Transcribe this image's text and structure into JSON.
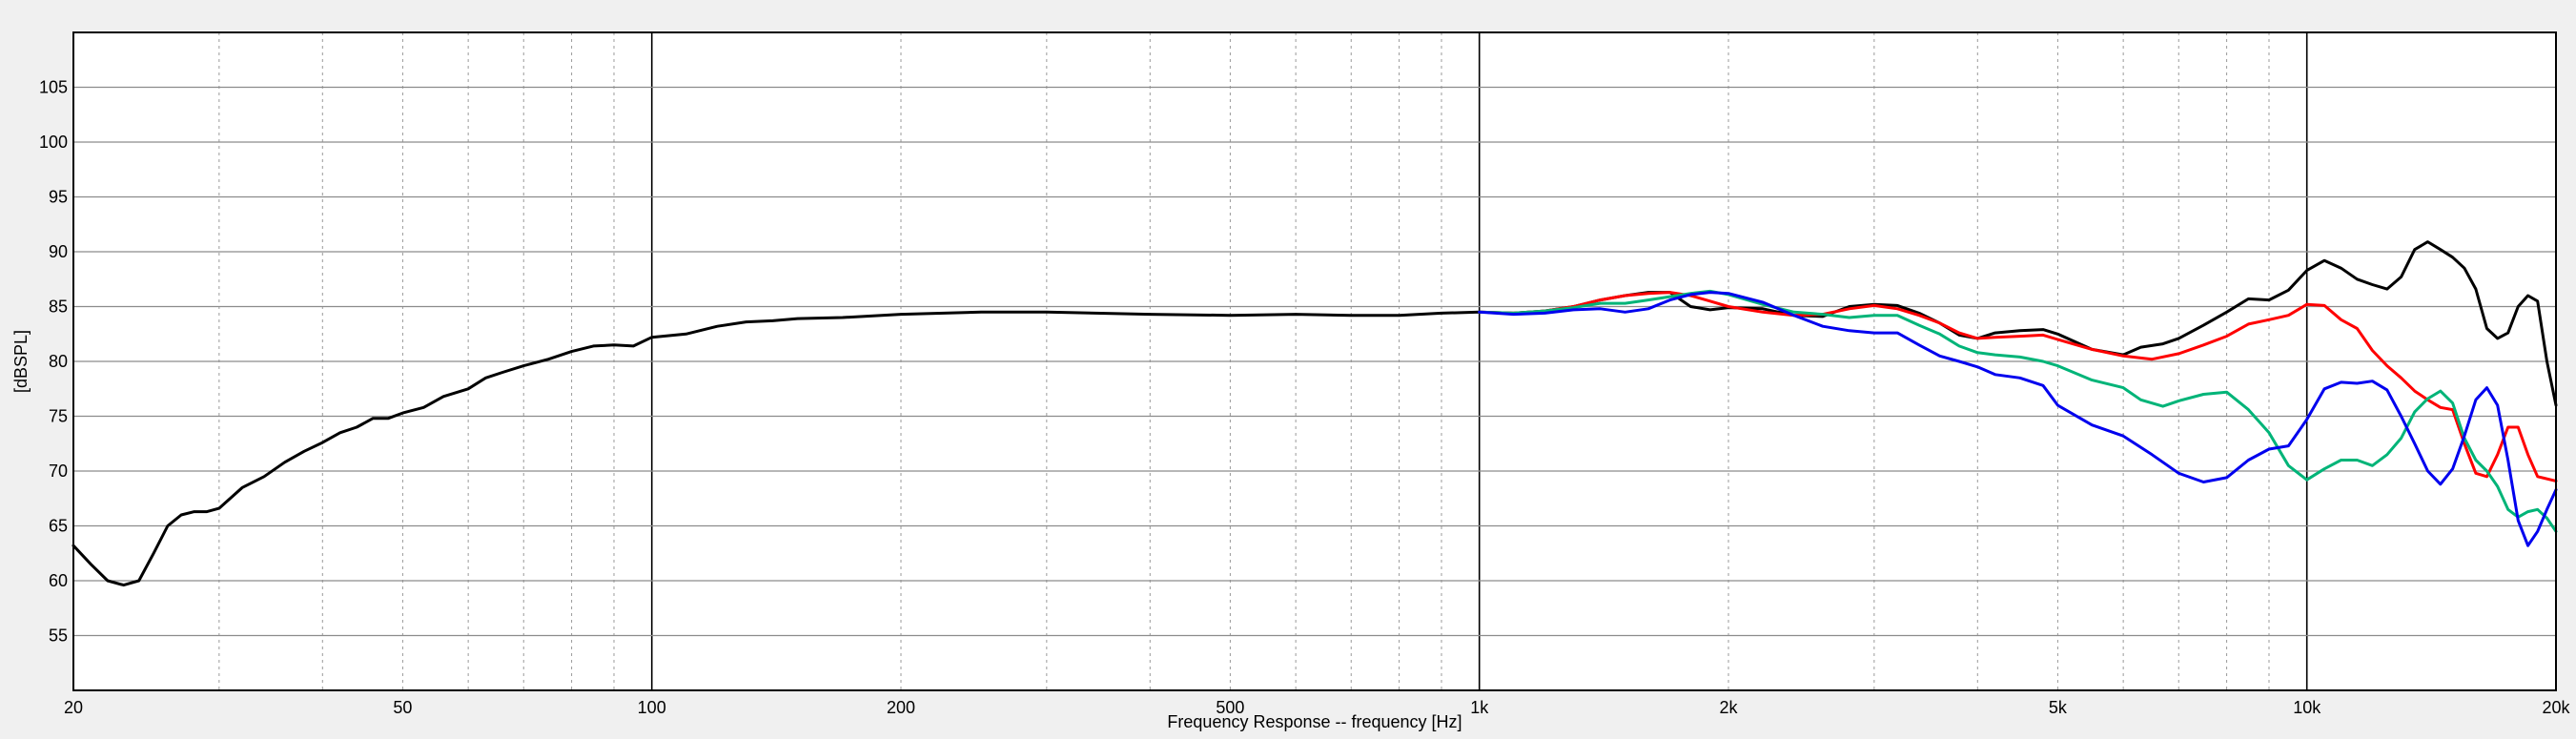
{
  "chart_data": {
    "type": "line",
    "xscale": "log",
    "xlabel": "Frequency Response -- frequency [Hz]",
    "ylabel": "[dBSPL]",
    "xlim": [
      20,
      20000
    ],
    "ylim": [
      50,
      110
    ],
    "grid": true,
    "x_ticks": [
      {
        "value": 20,
        "label": "20"
      },
      {
        "value": 50,
        "label": "50"
      },
      {
        "value": 100,
        "label": "100"
      },
      {
        "value": 200,
        "label": "200"
      },
      {
        "value": 500,
        "label": "500"
      },
      {
        "value": 1000,
        "label": "1k"
      },
      {
        "value": 2000,
        "label": "2k"
      },
      {
        "value": 5000,
        "label": "5k"
      },
      {
        "value": 10000,
        "label": "10k"
      },
      {
        "value": 20000,
        "label": "20k"
      }
    ],
    "y_ticks": [
      {
        "value": 55,
        "label": "55"
      },
      {
        "value": 60,
        "label": "60"
      },
      {
        "value": 65,
        "label": "65"
      },
      {
        "value": 70,
        "label": "70"
      },
      {
        "value": 75,
        "label": "75"
      },
      {
        "value": 80,
        "label": "80"
      },
      {
        "value": 85,
        "label": "85"
      },
      {
        "value": 90,
        "label": "90"
      },
      {
        "value": 95,
        "label": "95"
      },
      {
        "value": 100,
        "label": "100"
      },
      {
        "value": 105,
        "label": "105"
      }
    ],
    "series": [
      {
        "color": "#000000",
        "points": [
          [
            20,
            63.2
          ],
          [
            21,
            61.5
          ],
          [
            22,
            60
          ],
          [
            23,
            59.6
          ],
          [
            24,
            60
          ],
          [
            25,
            62.5
          ],
          [
            26,
            65
          ],
          [
            27,
            66
          ],
          [
            28,
            66.3
          ],
          [
            29,
            66.3
          ],
          [
            30,
            66.6
          ],
          [
            32,
            68.5
          ],
          [
            34,
            69.5
          ],
          [
            36,
            70.8
          ],
          [
            38,
            71.8
          ],
          [
            40,
            72.6
          ],
          [
            42,
            73.5
          ],
          [
            44,
            74
          ],
          [
            46,
            74.8
          ],
          [
            48,
            74.8
          ],
          [
            50,
            75.3
          ],
          [
            53,
            75.8
          ],
          [
            56,
            76.8
          ],
          [
            60,
            77.5
          ],
          [
            63,
            78.5
          ],
          [
            66,
            79
          ],
          [
            70,
            79.6
          ],
          [
            75,
            80.2
          ],
          [
            80,
            80.9
          ],
          [
            85,
            81.4
          ],
          [
            90,
            81.5
          ],
          [
            95,
            81.4
          ],
          [
            100,
            82.2
          ],
          [
            110,
            82.5
          ],
          [
            120,
            83.2
          ],
          [
            130,
            83.6
          ],
          [
            140,
            83.7
          ],
          [
            150,
            83.9
          ],
          [
            170,
            84
          ],
          [
            200,
            84.3
          ],
          [
            250,
            84.5
          ],
          [
            300,
            84.5
          ],
          [
            400,
            84.3
          ],
          [
            500,
            84.2
          ],
          [
            600,
            84.3
          ],
          [
            700,
            84.2
          ],
          [
            800,
            84.2
          ],
          [
            900,
            84.4
          ],
          [
            1000,
            84.5
          ],
          [
            1100,
            84.4
          ],
          [
            1200,
            84.6
          ],
          [
            1300,
            85
          ],
          [
            1400,
            85.6
          ],
          [
            1500,
            86
          ],
          [
            1600,
            86.3
          ],
          [
            1700,
            86.3
          ],
          [
            1800,
            85
          ],
          [
            1900,
            84.7
          ],
          [
            2000,
            84.9
          ],
          [
            2200,
            84.8
          ],
          [
            2400,
            84.2
          ],
          [
            2600,
            84.1
          ],
          [
            2800,
            85
          ],
          [
            3000,
            85.2
          ],
          [
            3200,
            85.1
          ],
          [
            3400,
            84.4
          ],
          [
            3600,
            83.5
          ],
          [
            3800,
            82.4
          ],
          [
            4000,
            82.1
          ],
          [
            4200,
            82.6
          ],
          [
            4500,
            82.8
          ],
          [
            4800,
            82.9
          ],
          [
            5000,
            82.5
          ],
          [
            5500,
            81.1
          ],
          [
            6000,
            80.6
          ],
          [
            6300,
            81.3
          ],
          [
            6700,
            81.6
          ],
          [
            7000,
            82.1
          ],
          [
            7500,
            83.3
          ],
          [
            8000,
            84.5
          ],
          [
            8500,
            85.7
          ],
          [
            9000,
            85.6
          ],
          [
            9500,
            86.5
          ],
          [
            10000,
            88.3
          ],
          [
            10500,
            89.2
          ],
          [
            11000,
            88.5
          ],
          [
            11500,
            87.5
          ],
          [
            12000,
            87
          ],
          [
            12500,
            86.6
          ],
          [
            13000,
            87.7
          ],
          [
            13500,
            90.2
          ],
          [
            14000,
            90.9
          ],
          [
            14500,
            90.2
          ],
          [
            15000,
            89.5
          ],
          [
            15500,
            88.5
          ],
          [
            16000,
            86.6
          ],
          [
            16500,
            83
          ],
          [
            17000,
            82.1
          ],
          [
            17500,
            82.6
          ],
          [
            18000,
            85
          ],
          [
            18500,
            86
          ],
          [
            19000,
            85.5
          ],
          [
            19500,
            80
          ],
          [
            20000,
            76
          ]
        ]
      },
      {
        "color": "#ff0000",
        "points": [
          [
            1000,
            84.5
          ],
          [
            1100,
            84.4
          ],
          [
            1200,
            84.6
          ],
          [
            1300,
            85
          ],
          [
            1400,
            85.6
          ],
          [
            1500,
            86
          ],
          [
            1600,
            86.2
          ],
          [
            1700,
            86.3
          ],
          [
            1800,
            86
          ],
          [
            1900,
            85.5
          ],
          [
            2000,
            85
          ],
          [
            2200,
            84.5
          ],
          [
            2400,
            84.2
          ],
          [
            2600,
            84.3
          ],
          [
            2800,
            84.8
          ],
          [
            3000,
            85.1
          ],
          [
            3200,
            84.8
          ],
          [
            3400,
            84.2
          ],
          [
            3600,
            83.5
          ],
          [
            3800,
            82.6
          ],
          [
            4000,
            82.1
          ],
          [
            4200,
            82.2
          ],
          [
            4500,
            82.3
          ],
          [
            4800,
            82.4
          ],
          [
            5000,
            82
          ],
          [
            5500,
            81.1
          ],
          [
            6000,
            80.5
          ],
          [
            6500,
            80.2
          ],
          [
            7000,
            80.7
          ],
          [
            7500,
            81.5
          ],
          [
            8000,
            82.3
          ],
          [
            8500,
            83.4
          ],
          [
            9000,
            83.8
          ],
          [
            9500,
            84.2
          ],
          [
            10000,
            85.2
          ],
          [
            10500,
            85.1
          ],
          [
            11000,
            83.8
          ],
          [
            11500,
            83
          ],
          [
            12000,
            81
          ],
          [
            12500,
            79.6
          ],
          [
            13000,
            78.5
          ],
          [
            13500,
            77.3
          ],
          [
            14000,
            76.5
          ],
          [
            14500,
            75.8
          ],
          [
            15000,
            75.6
          ],
          [
            15500,
            72.5
          ],
          [
            16000,
            69.8
          ],
          [
            16500,
            69.5
          ],
          [
            17000,
            71.5
          ],
          [
            17500,
            74
          ],
          [
            18000,
            74
          ],
          [
            18500,
            71.5
          ],
          [
            19000,
            69.5
          ],
          [
            20000,
            69.1
          ]
        ]
      },
      {
        "color": "#00b478",
        "points": [
          [
            1000,
            84.5
          ],
          [
            1100,
            84.4
          ],
          [
            1200,
            84.6
          ],
          [
            1300,
            84.9
          ],
          [
            1400,
            85.3
          ],
          [
            1500,
            85.3
          ],
          [
            1600,
            85.6
          ],
          [
            1700,
            85.9
          ],
          [
            1800,
            86.2
          ],
          [
            1900,
            86.4
          ],
          [
            2000,
            86.1
          ],
          [
            2200,
            85.2
          ],
          [
            2400,
            84.5
          ],
          [
            2600,
            84.3
          ],
          [
            2800,
            84
          ],
          [
            3000,
            84.2
          ],
          [
            3200,
            84.2
          ],
          [
            3400,
            83.3
          ],
          [
            3600,
            82.5
          ],
          [
            3800,
            81.4
          ],
          [
            4000,
            80.8
          ],
          [
            4200,
            80.6
          ],
          [
            4500,
            80.4
          ],
          [
            4800,
            80
          ],
          [
            5000,
            79.6
          ],
          [
            5500,
            78.3
          ],
          [
            6000,
            77.6
          ],
          [
            6300,
            76.5
          ],
          [
            6700,
            75.9
          ],
          [
            7000,
            76.4
          ],
          [
            7500,
            77
          ],
          [
            8000,
            77.2
          ],
          [
            8500,
            75.6
          ],
          [
            9000,
            73.5
          ],
          [
            9500,
            70.5
          ],
          [
            10000,
            69.2
          ],
          [
            10500,
            70.2
          ],
          [
            11000,
            71
          ],
          [
            11500,
            71
          ],
          [
            12000,
            70.5
          ],
          [
            12500,
            71.5
          ],
          [
            13000,
            73
          ],
          [
            13500,
            75.4
          ],
          [
            14000,
            76.6
          ],
          [
            14500,
            77.3
          ],
          [
            15000,
            76.2
          ],
          [
            15500,
            73
          ],
          [
            16000,
            71
          ],
          [
            16500,
            70
          ],
          [
            17000,
            68.6
          ],
          [
            17500,
            66.5
          ],
          [
            18000,
            65.8
          ],
          [
            18500,
            66.3
          ],
          [
            19000,
            66.5
          ],
          [
            19500,
            65.7
          ],
          [
            20000,
            64.5
          ]
        ]
      },
      {
        "color": "#0000ee",
        "points": [
          [
            1000,
            84.5
          ],
          [
            1100,
            84.3
          ],
          [
            1200,
            84.4
          ],
          [
            1300,
            84.7
          ],
          [
            1400,
            84.8
          ],
          [
            1500,
            84.5
          ],
          [
            1600,
            84.8
          ],
          [
            1700,
            85.6
          ],
          [
            1800,
            86.1
          ],
          [
            1900,
            86.3
          ],
          [
            2000,
            86.2
          ],
          [
            2200,
            85.4
          ],
          [
            2400,
            84.2
          ],
          [
            2600,
            83.2
          ],
          [
            2800,
            82.8
          ],
          [
            3000,
            82.6
          ],
          [
            3200,
            82.6
          ],
          [
            3400,
            81.5
          ],
          [
            3600,
            80.5
          ],
          [
            3800,
            80
          ],
          [
            4000,
            79.5
          ],
          [
            4200,
            78.8
          ],
          [
            4500,
            78.5
          ],
          [
            4800,
            77.8
          ],
          [
            5000,
            76
          ],
          [
            5500,
            74.2
          ],
          [
            6000,
            73.2
          ],
          [
            6500,
            71.5
          ],
          [
            7000,
            69.8
          ],
          [
            7500,
            69
          ],
          [
            8000,
            69.4
          ],
          [
            8500,
            71
          ],
          [
            9000,
            72
          ],
          [
            9500,
            72.3
          ],
          [
            10000,
            74.7
          ],
          [
            10500,
            77.5
          ],
          [
            11000,
            78.1
          ],
          [
            11500,
            78
          ],
          [
            12000,
            78.2
          ],
          [
            12500,
            77.4
          ],
          [
            13000,
            75
          ],
          [
            13500,
            72.5
          ],
          [
            14000,
            70
          ],
          [
            14500,
            68.8
          ],
          [
            15000,
            70.2
          ],
          [
            15500,
            73.2
          ],
          [
            16000,
            76.5
          ],
          [
            16500,
            77.6
          ],
          [
            17000,
            76
          ],
          [
            17500,
            71
          ],
          [
            18000,
            65.5
          ],
          [
            18500,
            63.2
          ],
          [
            19000,
            64.5
          ],
          [
            19500,
            66.5
          ],
          [
            20000,
            68.3
          ]
        ]
      }
    ]
  }
}
